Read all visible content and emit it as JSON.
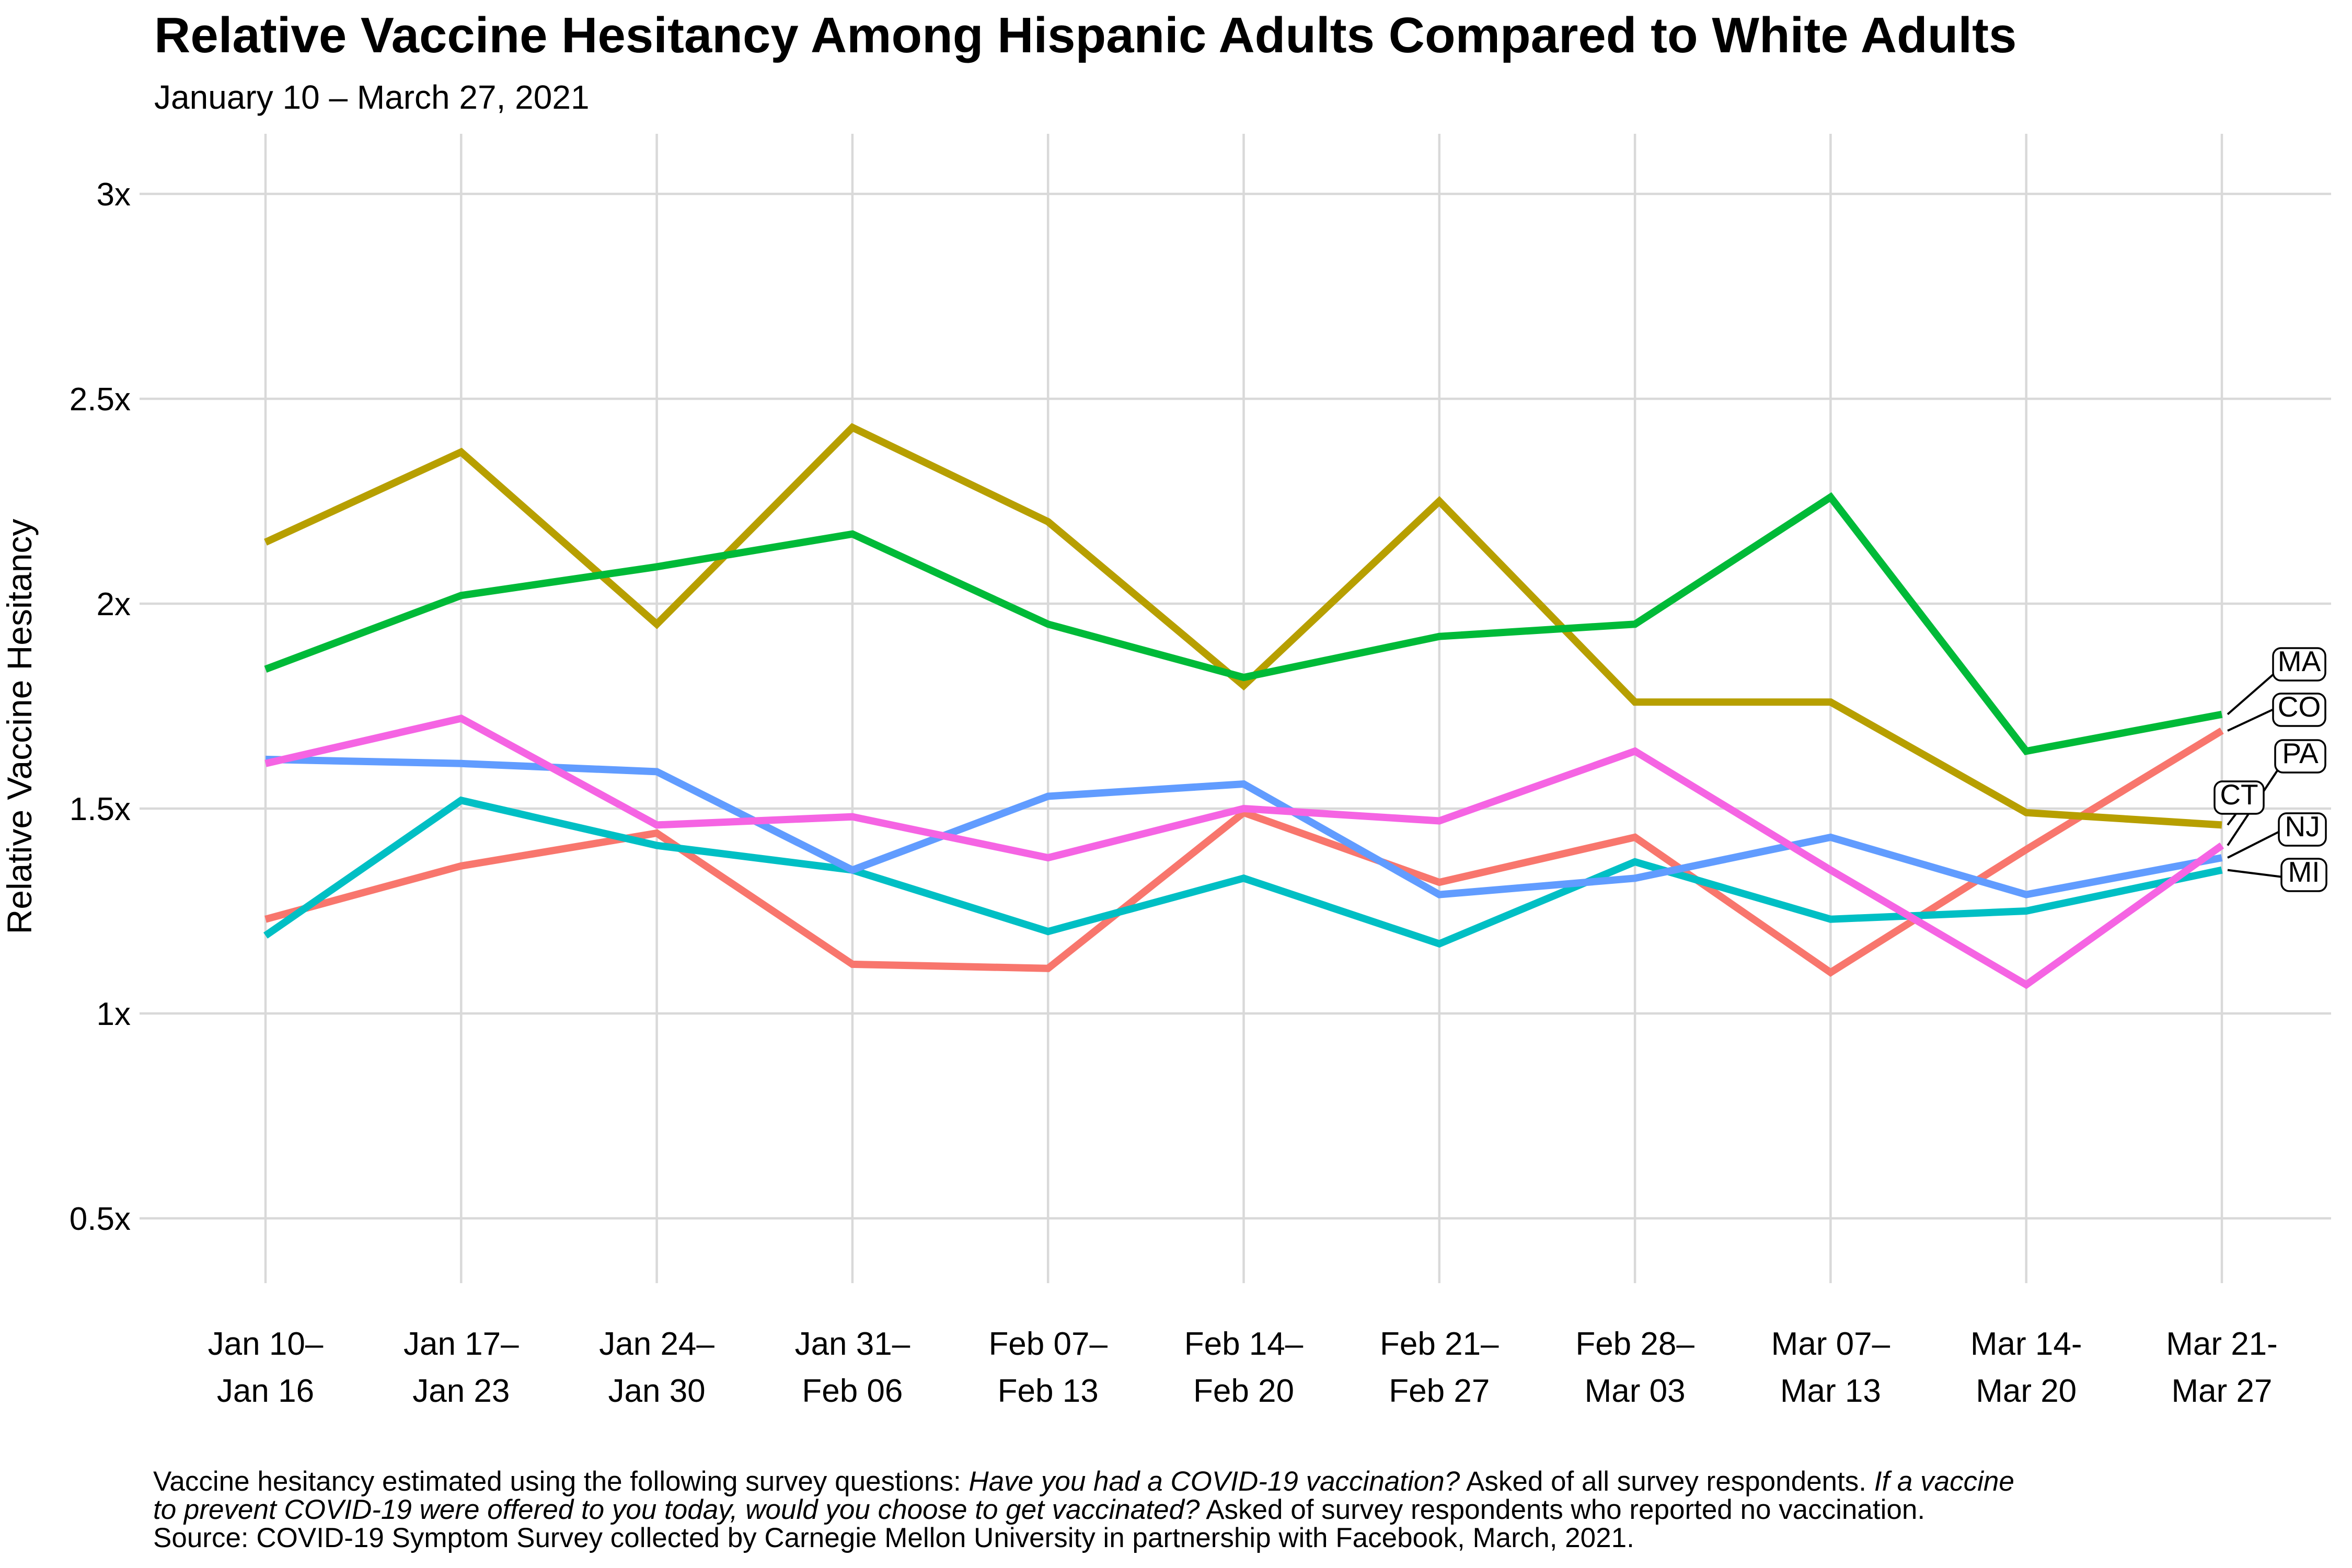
{
  "title": "Relative Vaccine Hesitancy Among Hispanic Adults Compared to White Adults",
  "subtitle": "January 10 – March 27, 2021",
  "chart_data": {
    "type": "line",
    "title": "Relative Vaccine Hesitancy Among Hispanic Adults Compared to White Adults",
    "subtitle": "January 10 – March 27, 2021",
    "xlabel": "",
    "ylabel": "Relative Vaccine Hesitancy",
    "ylim": [
      0.5,
      3
    ],
    "grid": true,
    "legend_position": "direct-line-labels-right",
    "y_ticks": [
      {
        "value": 0.5,
        "label": "0.5x"
      },
      {
        "value": 1.0,
        "label": "1x"
      },
      {
        "value": 1.5,
        "label": "1.5x"
      },
      {
        "value": 2.0,
        "label": "2x"
      },
      {
        "value": 2.5,
        "label": "2.5x"
      },
      {
        "value": 3.0,
        "label": "3x"
      }
    ],
    "categories": [
      "Jan 10–Jan 16",
      "Jan 17–Jan 23",
      "Jan 24–Jan 30",
      "Jan 31–Feb 06",
      "Feb 07–Feb 13",
      "Feb 14–Feb 20",
      "Feb 21–Feb 27",
      "Feb 28–Mar 03",
      "Mar 07–Mar 13",
      "Mar 14-Mar 20",
      "Mar 21-Mar 27"
    ],
    "categories_two_line": [
      [
        "Jan 10–",
        "Jan 16"
      ],
      [
        "Jan 17–",
        "Jan 23"
      ],
      [
        "Jan 24–",
        "Jan 30"
      ],
      [
        "Jan 31–",
        "Feb 06"
      ],
      [
        "Feb 07–",
        "Feb 13"
      ],
      [
        "Feb 14–",
        "Feb 20"
      ],
      [
        "Feb 21–",
        "Feb 27"
      ],
      [
        "Feb 28–",
        "Mar 03"
      ],
      [
        "Mar 07–",
        "Mar 13"
      ],
      [
        "Mar 14-",
        "Mar 20"
      ],
      [
        "Mar 21-",
        "Mar 27"
      ]
    ],
    "series": [
      {
        "name": "CO",
        "color": "#F8766D",
        "values": [
          1.23,
          1.36,
          1.44,
          1.12,
          1.11,
          1.49,
          1.32,
          1.43,
          1.1,
          1.4,
          1.69
        ]
      },
      {
        "name": "CT",
        "color": "#B79F00",
        "values": [
          2.15,
          2.37,
          1.95,
          2.43,
          2.2,
          1.8,
          2.25,
          1.76,
          1.76,
          1.49,
          1.46
        ]
      },
      {
        "name": "MA",
        "color": "#00BA38",
        "values": [
          1.84,
          2.02,
          2.09,
          2.17,
          1.95,
          1.82,
          1.92,
          1.95,
          2.26,
          1.64,
          1.73
        ]
      },
      {
        "name": "MI",
        "color": "#00BFC4",
        "values": [
          1.19,
          1.52,
          1.41,
          1.35,
          1.2,
          1.33,
          1.17,
          1.37,
          1.23,
          1.25,
          1.35
        ]
      },
      {
        "name": "NJ",
        "color": "#619CFF",
        "values": [
          1.62,
          1.61,
          1.59,
          1.35,
          1.53,
          1.56,
          1.29,
          1.33,
          1.43,
          1.29,
          1.38
        ]
      },
      {
        "name": "PA",
        "color": "#F564E3",
        "values": [
          1.61,
          1.72,
          1.46,
          1.48,
          1.38,
          1.5,
          1.47,
          1.64,
          1.35,
          1.07,
          1.41
        ]
      }
    ]
  },
  "style_colors": {
    "gridline": "#D9D9D9",
    "label_box_border": "#000000",
    "label_box_fill": "#FFFFFF",
    "leader_line": "#000000"
  },
  "caption": {
    "line1": [
      {
        "text": "Vaccine hesitancy estimated using the following survey questions: ",
        "italic": false
      },
      {
        "text": "Have you had a COVID-19 vaccination?",
        "italic": true
      },
      {
        "text": " Asked of all survey respondents. ",
        "italic": false
      },
      {
        "text": "If a vaccine",
        "italic": true
      }
    ],
    "line2": [
      {
        "text": "to prevent COVID-19 were offered to you today, would you choose to get vaccinated?",
        "italic": true
      },
      {
        "text": " Asked of survey respondents who reported no vaccination.",
        "italic": false
      }
    ],
    "line3": [
      {
        "text": "Source: COVID-19 Symptom Survey collected by Carnegie Mellon University in partnership with Facebook, March, 2021.",
        "italic": false
      }
    ]
  }
}
